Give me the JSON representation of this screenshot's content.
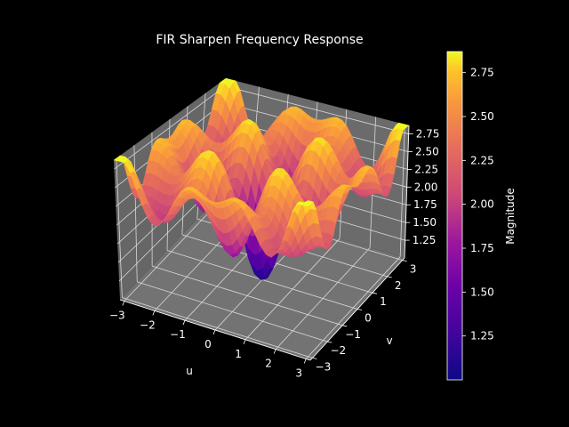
{
  "chart_data": {
    "type": "surface3d",
    "title": "FIR Sharpen Frequency Response",
    "xlabel": "u",
    "ylabel": "v",
    "colorbar_label": "Magnitude",
    "colormap": "plasma",
    "background": "#000000",
    "pane_color": "#737373",
    "grid": true,
    "xlim": [
      -3.14159,
      3.14159
    ],
    "ylim": [
      -3.14159,
      3.14159
    ],
    "zlim": [
      1.0,
      2.87
    ],
    "x_ticks": [
      -3,
      -2,
      -1,
      0,
      1,
      2,
      3
    ],
    "y_ticks": [
      -3,
      -2,
      -1,
      0,
      1,
      2,
      3
    ],
    "z_ticks": [
      1.25,
      1.5,
      1.75,
      2.0,
      2.25,
      2.5,
      2.75
    ],
    "x_tick_labels": [
      "−3",
      "−2",
      "−1",
      "0",
      "1",
      "2",
      "3"
    ],
    "y_tick_labels": [
      "−3",
      "−2",
      "−1",
      "0",
      "1",
      "2",
      "3"
    ],
    "z_tick_labels": [
      "1.25",
      "1.50",
      "1.75",
      "2.00",
      "2.25",
      "2.50",
      "2.75"
    ],
    "colorbar_ticks": [
      1.25,
      1.5,
      1.75,
      2.0,
      2.25,
      2.5,
      2.75
    ],
    "colorbar_tick_labels": [
      "1.25",
      "1.50",
      "1.75",
      "2.00",
      "2.25",
      "2.50",
      "2.75"
    ],
    "colorbar_range": [
      1.0,
      2.87
    ],
    "surface_samples": [
      {
        "u": 0,
        "v": 0,
        "magnitude": 1.0
      },
      {
        "u": 1.6,
        "v": 0,
        "magnitude": 2.87
      },
      {
        "u": 0,
        "v": 1.6,
        "magnitude": 2.87
      },
      {
        "u": 1.6,
        "v": 1.6,
        "magnitude": 2.2
      },
      {
        "u": 3.14,
        "v": 3.14,
        "magnitude": 2.15
      },
      {
        "u": 3.14,
        "v": 0,
        "magnitude": 2.2
      }
    ]
  }
}
